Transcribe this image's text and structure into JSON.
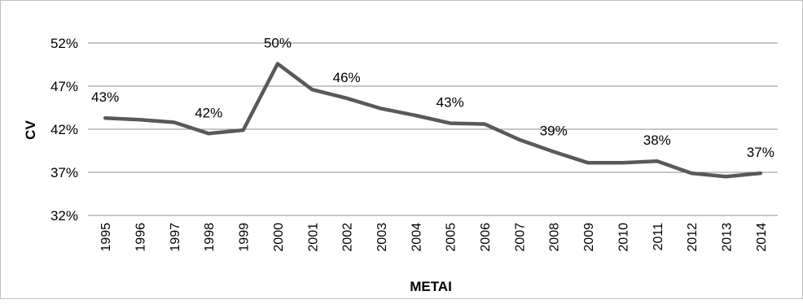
{
  "chart_data": {
    "type": "line",
    "title": "",
    "xlabel": "METAI",
    "ylabel": "CV",
    "ylim": [
      32,
      52
    ],
    "yticks": [
      32,
      37,
      42,
      47,
      52
    ],
    "ytick_labels": [
      "32%",
      "37%",
      "42%",
      "47%",
      "52%"
    ],
    "grid": true,
    "line_color": "#595959",
    "x": [
      "1995",
      "1996",
      "1997",
      "1998",
      "1999",
      "2000",
      "2001",
      "2002",
      "2003",
      "2004",
      "2005",
      "2006",
      "2007",
      "2008",
      "2009",
      "2010",
      "2011",
      "2012",
      "2013",
      "2014"
    ],
    "values": [
      43.3,
      43.1,
      42.8,
      41.5,
      41.9,
      49.6,
      46.6,
      45.6,
      44.4,
      43.6,
      42.7,
      42.6,
      40.8,
      39.4,
      38.1,
      38.1,
      38.3,
      36.9,
      36.5,
      36.9
    ],
    "data_labels": [
      {
        "x": "1995",
        "text": "43%"
      },
      {
        "x": "1998",
        "text": "42%"
      },
      {
        "x": "2000",
        "text": "50%"
      },
      {
        "x": "2002",
        "text": "46%"
      },
      {
        "x": "2005",
        "text": "43%"
      },
      {
        "x": "2008",
        "text": "39%"
      },
      {
        "x": "2011",
        "text": "38%"
      },
      {
        "x": "2014",
        "text": "37%"
      }
    ]
  }
}
